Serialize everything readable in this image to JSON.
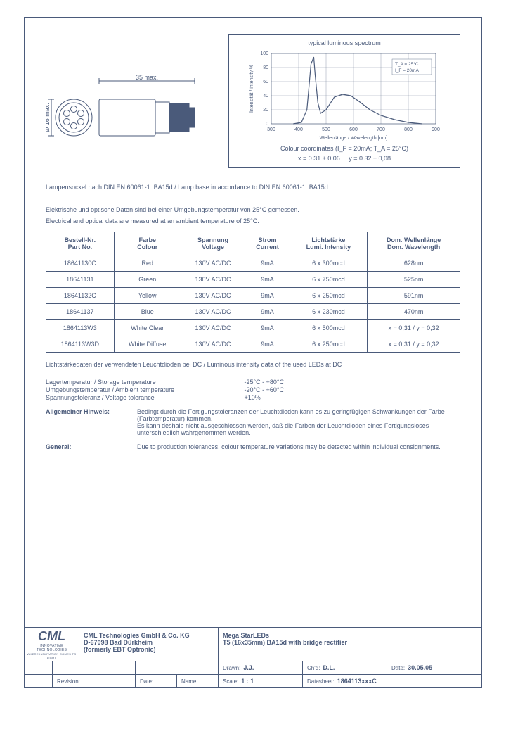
{
  "drawing": {
    "width_label": "35 max.",
    "diameter_label": "Ø 16 max."
  },
  "spectrum": {
    "title": "typical luminous spectrum",
    "ylabel": "Intensität / intensity %",
    "xlabel": "Wellenlänge / Wavelength [nm]",
    "curve_color": "#4a5a7a",
    "grid_color": "#4a5a7a",
    "background": "#ffffff",
    "xlim": [
      300,
      900
    ],
    "ylim": [
      0,
      100
    ],
    "xticks": [
      300,
      400,
      500,
      600,
      700,
      800,
      900
    ],
    "yticks": [
      0,
      20,
      40,
      60,
      80,
      100
    ],
    "annotation": "T_A = 25°C\nI_F = 20mA",
    "curve_xy": [
      [
        380,
        0
      ],
      [
        410,
        2
      ],
      [
        430,
        20
      ],
      [
        445,
        85
      ],
      [
        455,
        95
      ],
      [
        460,
        70
      ],
      [
        470,
        30
      ],
      [
        480,
        15
      ],
      [
        500,
        20
      ],
      [
        530,
        38
      ],
      [
        560,
        42
      ],
      [
        590,
        40
      ],
      [
        620,
        32
      ],
      [
        660,
        20
      ],
      [
        700,
        12
      ],
      [
        750,
        6
      ],
      [
        800,
        2
      ],
      [
        850,
        0
      ]
    ],
    "coord_caption": "Colour coordinates (I_F = 20mA; T_A = 25°C)",
    "coord_x": "x = 0.31 ± 0,06",
    "coord_y": "y = 0.32 ± 0,08"
  },
  "notes": {
    "lamp_base": "Lampensockel nach DIN EN 60061-1: BA15d  /  Lamp base in accordance to DIN EN 60061-1: BA15d",
    "measurement_de": "Elektrische und optische Daten sind bei einer Umgebungstemperatur von 25°C gemessen.",
    "measurement_en": "Electrical and optical data are measured at an ambient temperature of 25°C."
  },
  "table": {
    "headers": [
      {
        "a": "Bestell-Nr.",
        "b": "Part No."
      },
      {
        "a": "Farbe",
        "b": "Colour"
      },
      {
        "a": "Spannung",
        "b": "Voltage"
      },
      {
        "a": "Strom",
        "b": "Current"
      },
      {
        "a": "Lichtstärke",
        "b": "Lumi. Intensity"
      },
      {
        "a": "Dom. Wellenlänge",
        "b": "Dom. Wavelength"
      }
    ],
    "rows": [
      [
        "18641130C",
        "Red",
        "130V AC/DC",
        "9mA",
        "6 x 300mcd",
        "628nm"
      ],
      [
        "18641131",
        "Green",
        "130V AC/DC",
        "9mA",
        "6 x 750mcd",
        "525nm"
      ],
      [
        "18641132C",
        "Yellow",
        "130V AC/DC",
        "9mA",
        "6 x 250mcd",
        "591nm"
      ],
      [
        "18641137",
        "Blue",
        "130V AC/DC",
        "9mA",
        "6 x 230mcd",
        "470nm"
      ],
      [
        "1864113W3",
        "White Clear",
        "130V AC/DC",
        "9mA",
        "6 x 500mcd",
        "x = 0,31 / y = 0,32"
      ],
      [
        "1864113W3D",
        "White Diffuse",
        "130V AC/DC",
        "9mA",
        "6 x 250mcd",
        "x = 0,31 / y = 0,32"
      ]
    ]
  },
  "luminous_note": "Lichtstärkedaten der verwendeten Leuchtdioden bei DC / Luminous intensity data of the used LEDs at DC",
  "specs": {
    "storage": {
      "label": "Lagertemperatur / Storage temperature",
      "val": "-25°C - +80°C"
    },
    "ambient": {
      "label": "Umgebungstemperatur / Ambient temperature",
      "val": "-20°C - +60°C"
    },
    "voltage_tol": {
      "label": "Spannungstoleranz / Voltage tolerance",
      "val": "+10%"
    }
  },
  "hints": {
    "de_label": "Allgemeiner Hinweis:",
    "de_text": "Bedingt durch die Fertigungstoleranzen der Leuchtdioden kann es zu geringfügigen Schwankungen der Farbe (Farbtemperatur) kommen.\nEs kann deshalb nicht ausgeschlossen werden, daß die Farben der Leuchtdioden eines Fertigungsloses unterschiedlich wahrgenommen werden.",
    "en_label": "General:",
    "en_text": "Due to production tolerances, colour temperature variations may be detected within individual consignments."
  },
  "titleblock": {
    "company": {
      "logo_name": "CML",
      "logo_tag1": "INNOVATIVE TECHNOLOGIES",
      "logo_tag2": "WHERE INNOVATION COMES TO LIGHT",
      "line1": "CML Technologies GmbH & Co. KG",
      "line2": "D-67098 Bad Dürkheim",
      "line3": "(formerly EBT Optronic)"
    },
    "title": {
      "line1": "Mega StarLEDs",
      "line2": "T5  (16x35mm)  BA15d  with bridge rectifier"
    },
    "row2": {
      "drawn_label": "Drawn:",
      "drawn": "J.J.",
      "chkd_label": "Ch'd:",
      "chkd": "D.L.",
      "date_label": "Date:",
      "date": "30.05.05"
    },
    "row3": {
      "rev_label": "Revision:",
      "date2_label": "Date:",
      "name_label": "Name:",
      "scale_label": "Scale:",
      "scale": "1 : 1",
      "ds_label": "Datasheet:",
      "ds": "1864113xxxC"
    }
  }
}
